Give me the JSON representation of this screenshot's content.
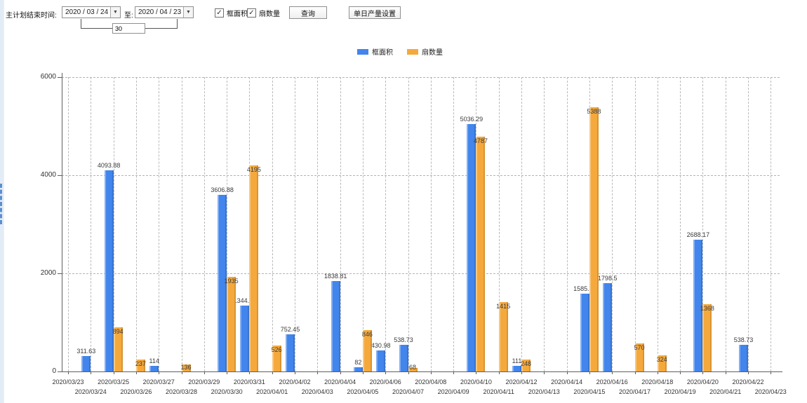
{
  "toolbar": {
    "label_plan_end": "主计划结束时间:",
    "date_from": "2020 / 03 / 24",
    "label_to": "至:",
    "date_to": "2020 / 04 / 23",
    "days_value": "30",
    "checkbox_frame_area": "框面积",
    "checkbox_fan_count": "扇数量",
    "query_button": "查询",
    "daily_output_button": "单日产量设置"
  },
  "legend": {
    "items": [
      {
        "label": "框面积",
        "color": "#4285ec"
      },
      {
        "label": "扇数量",
        "color": "#f5a93c"
      }
    ]
  },
  "chart_data": {
    "type": "bar",
    "title": "",
    "xlabel": "",
    "ylabel": "",
    "ylim": [
      0,
      6000
    ],
    "yticks": [
      0,
      2000,
      4000,
      6000
    ],
    "grid": "dashed",
    "legend_position": "top",
    "categories": [
      "2020/03/23",
      "2020/03/24",
      "2020/03/25",
      "2020/03/26",
      "2020/03/27",
      "2020/03/28",
      "2020/03/29",
      "2020/03/30",
      "2020/03/31",
      "2020/04/01",
      "2020/04/02",
      "2020/04/03",
      "2020/04/04",
      "2020/04/05",
      "2020/04/06",
      "2020/04/07",
      "2020/04/08",
      "2020/04/09",
      "2020/04/10",
      "2020/04/11",
      "2020/04/12",
      "2020/04/13",
      "2020/04/14",
      "2020/04/15",
      "2020/04/16",
      "2020/04/17",
      "2020/04/18",
      "2020/04/19",
      "2020/04/20",
      "2020/04/21",
      "2020/04/22",
      "2020/04/23"
    ],
    "series": [
      {
        "name": "框面积",
        "color": "#4285ec",
        "values": [
          null,
          311.63,
          4093.88,
          null,
          114,
          null,
          null,
          3606.88,
          1344.95,
          null,
          752.45,
          null,
          1838.81,
          82,
          430.98,
          538.73,
          null,
          null,
          5036.29,
          null,
          111,
          null,
          null,
          1585.96,
          1798.5,
          null,
          null,
          null,
          2688.17,
          null,
          538.73,
          null
        ]
      },
      {
        "name": "扇数量",
        "color": "#f5a93c",
        "values": [
          null,
          null,
          894,
          237,
          null,
          136,
          null,
          1935,
          4195,
          526,
          null,
          null,
          null,
          846,
          null,
          68,
          null,
          null,
          4787,
          1415,
          248,
          null,
          null,
          5388,
          null,
          570,
          324,
          null,
          1368,
          null,
          null,
          null
        ]
      }
    ]
  }
}
